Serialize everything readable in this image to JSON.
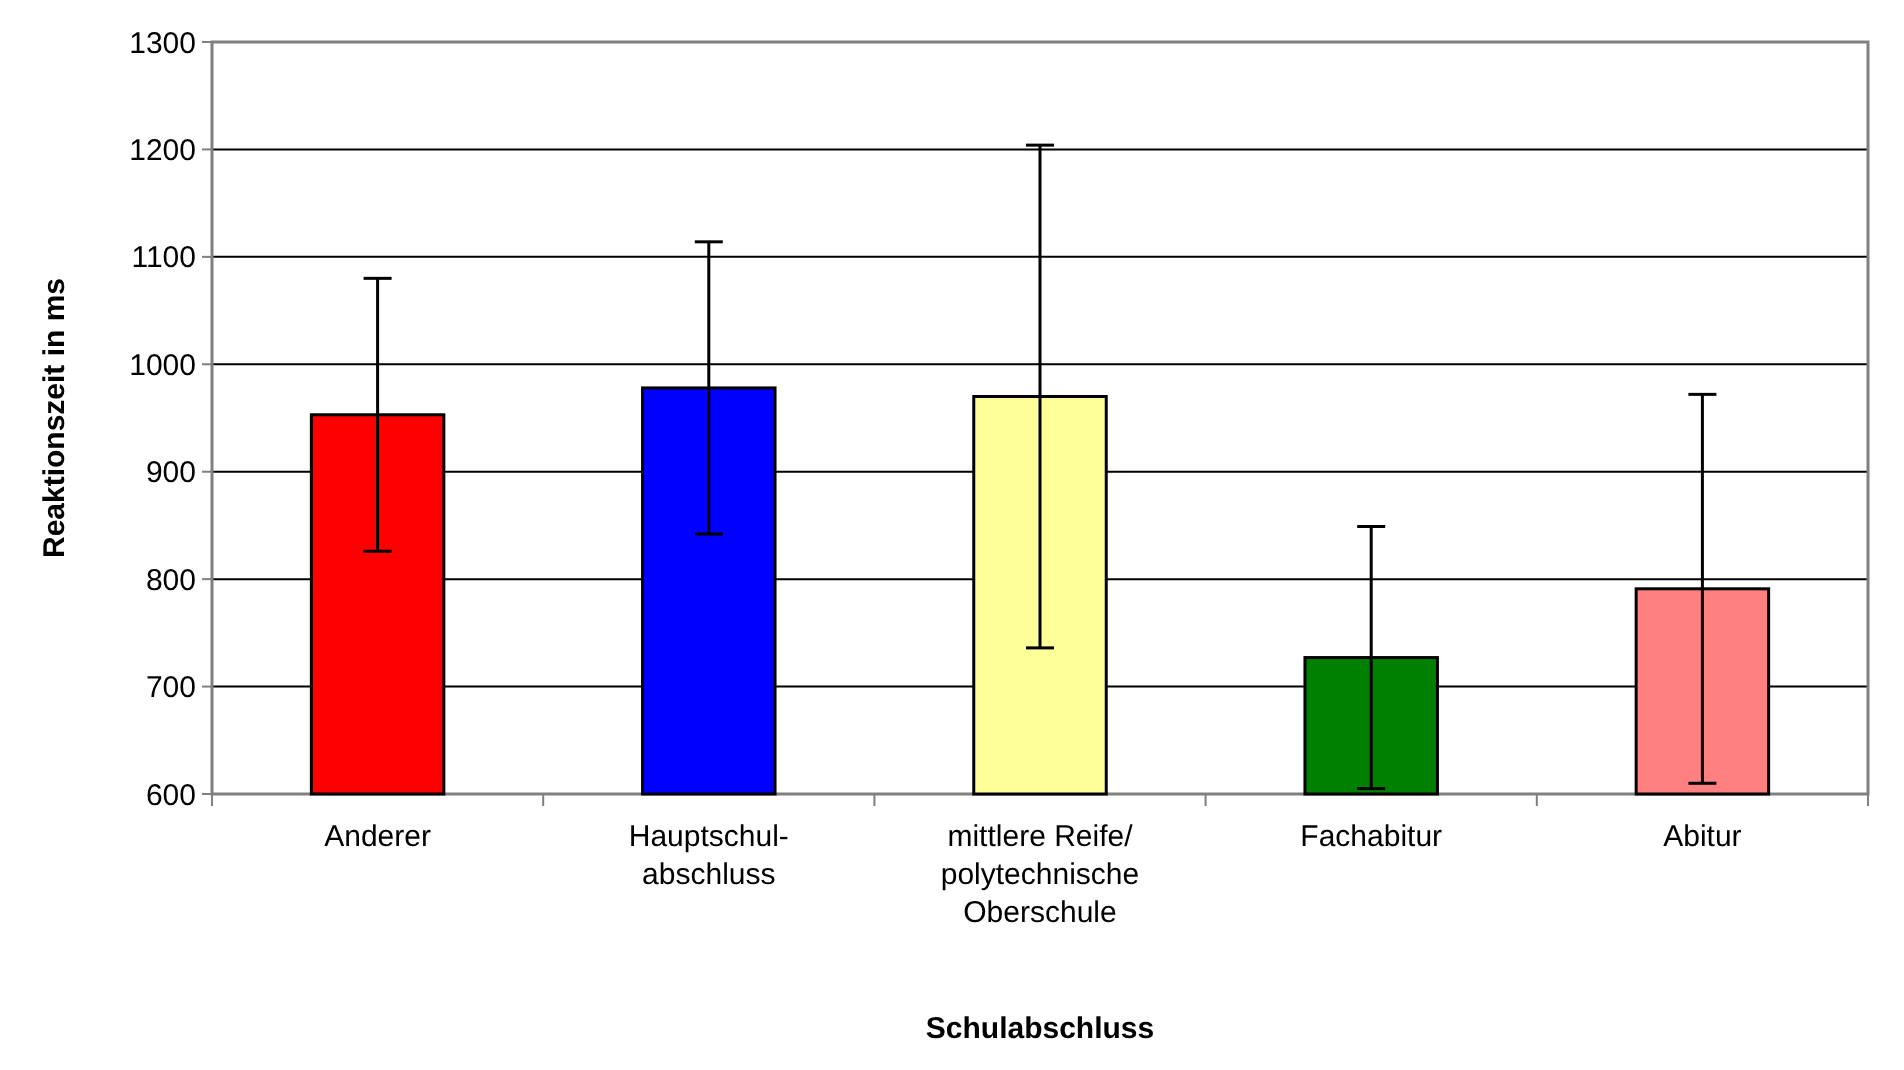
{
  "chart_data": {
    "type": "bar",
    "xlabel": "Schulabschluss",
    "ylabel": "Reaktionszeit in ms",
    "categories": [
      "Anderer",
      "Hauptschul-\nabschluss",
      "mittlere Reife/\npolytechnische\nOberschule",
      "Fachabitur",
      "Abitur"
    ],
    "values": [
      953,
      978,
      970,
      727,
      791
    ],
    "colors": [
      "#ff0000",
      "#0000ff",
      "#ffff99",
      "#008000",
      "#ff8080"
    ],
    "errors": [
      127,
      136,
      234,
      122,
      181
    ],
    "ylim": [
      600,
      1300
    ],
    "yticks": [
      600,
      700,
      800,
      900,
      1000,
      1100,
      1200,
      1300
    ],
    "grid": "y"
  }
}
